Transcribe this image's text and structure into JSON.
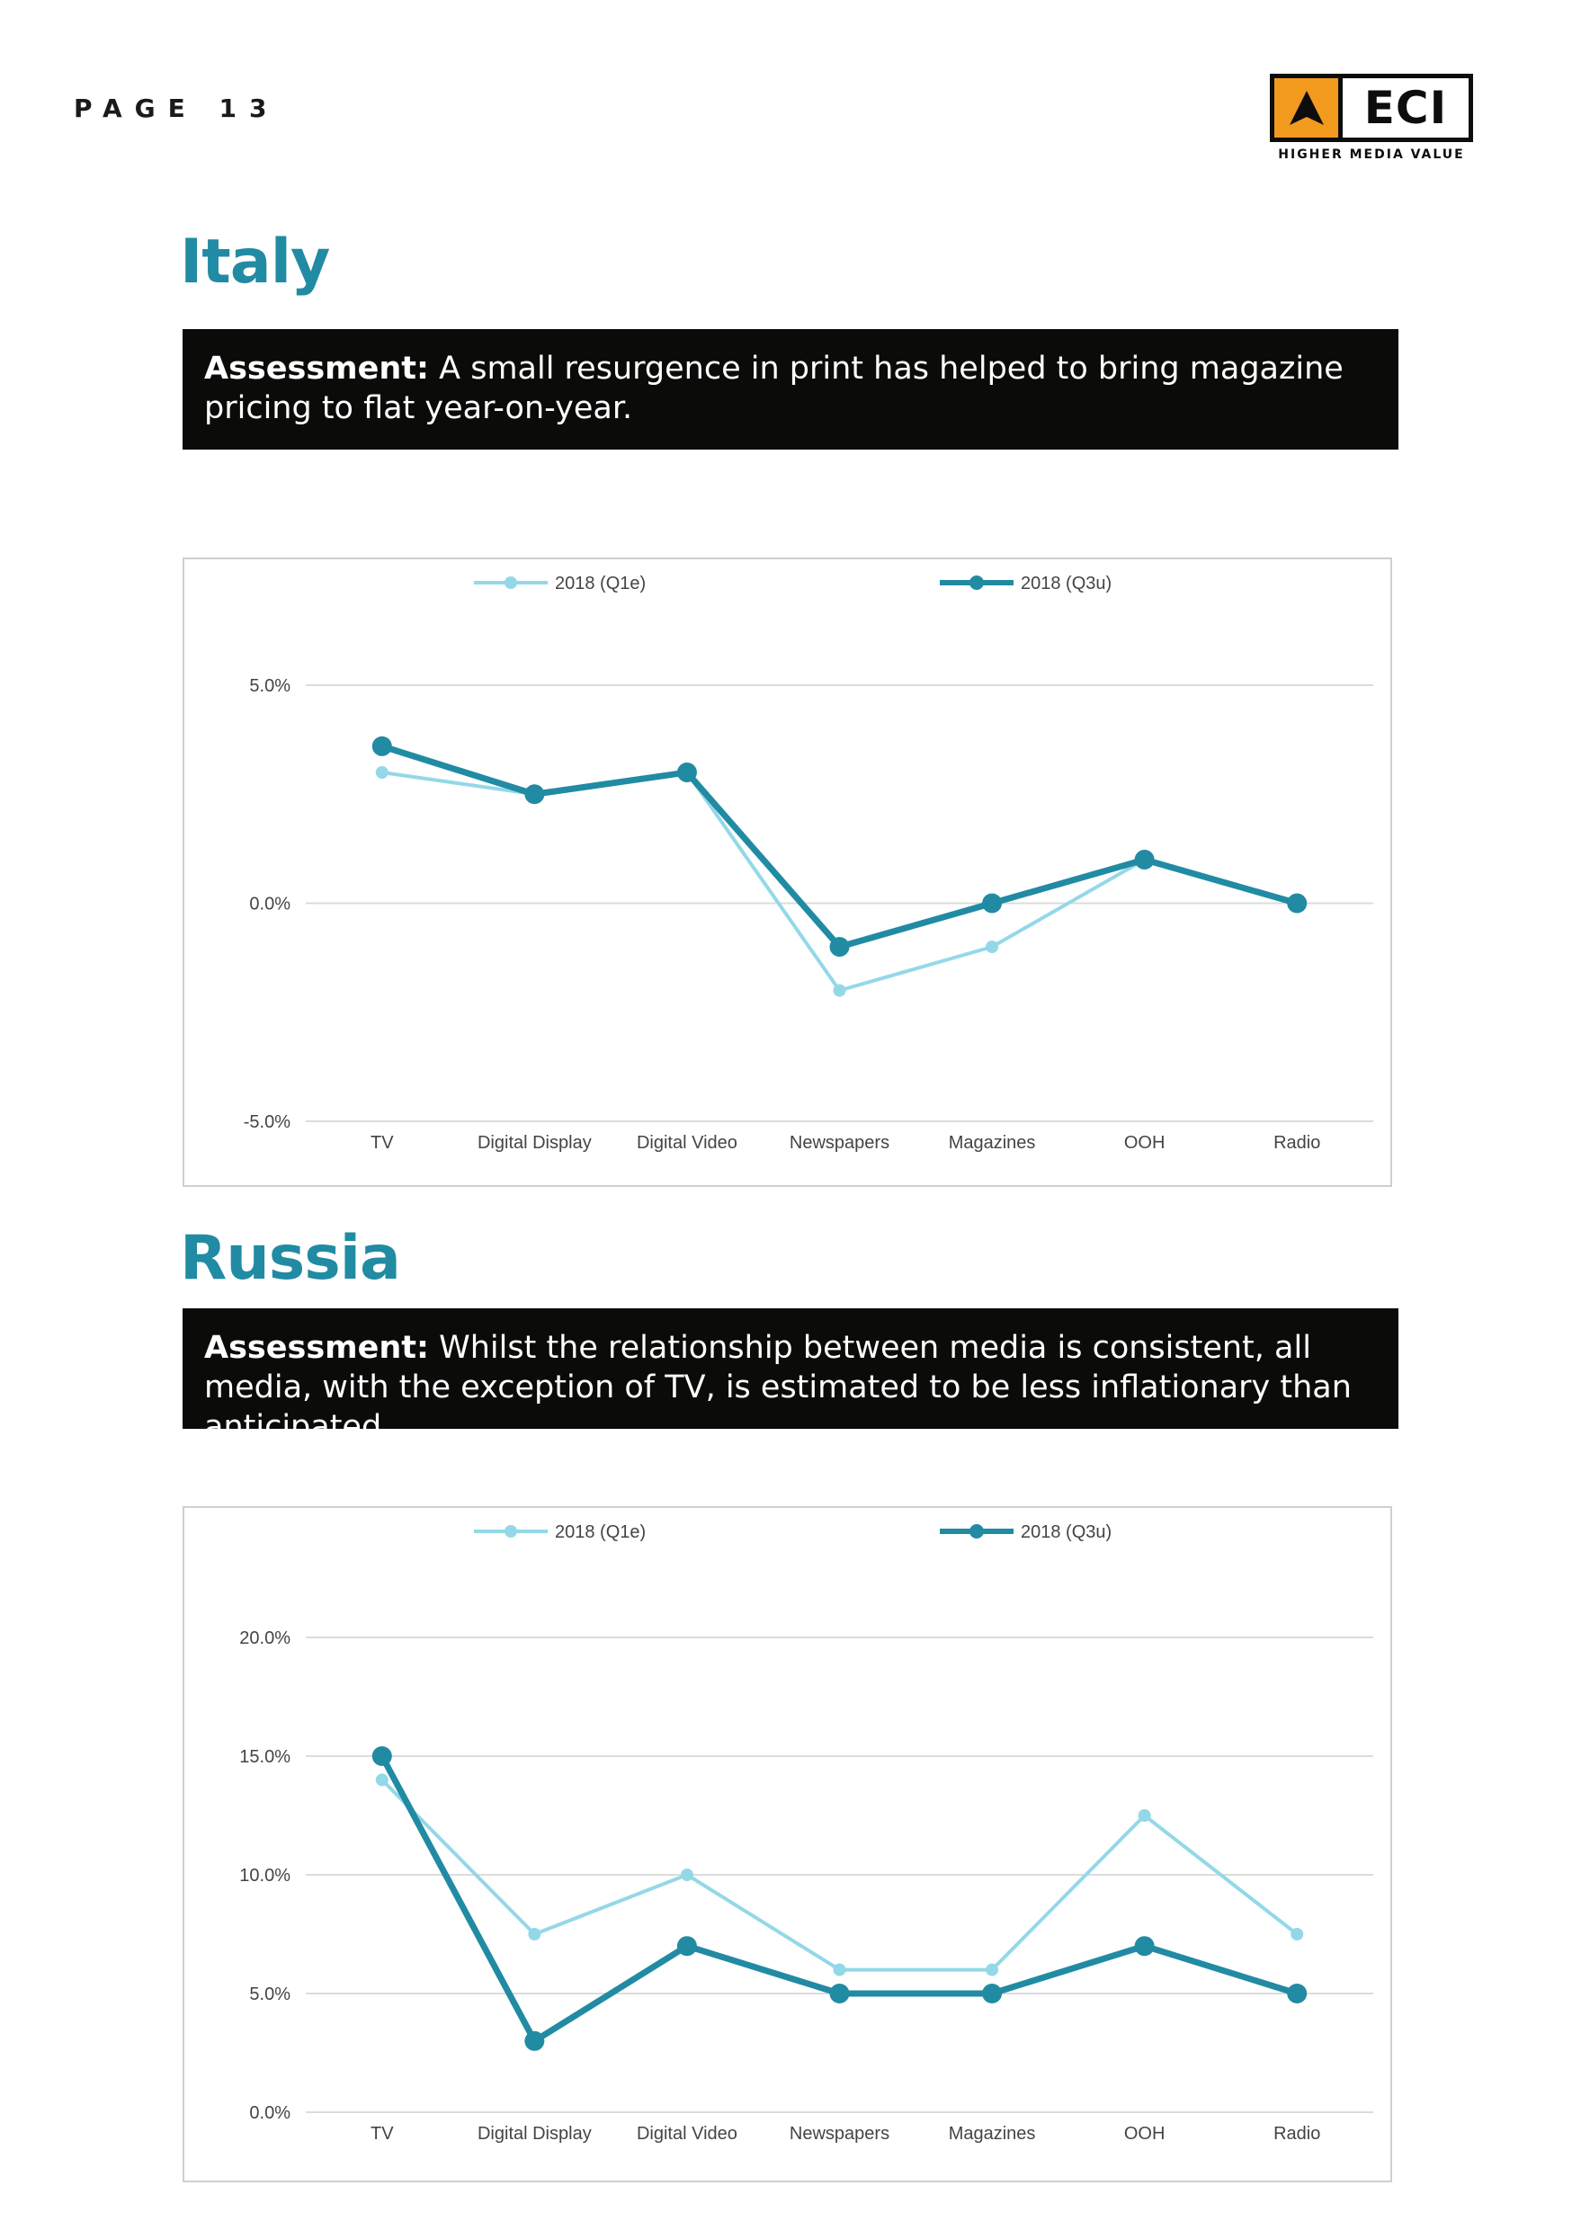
{
  "page": {
    "label": "PAGE 13"
  },
  "logo": {
    "text": "ECI",
    "tagline": "HIGHER MEDIA VALUE"
  },
  "colors": {
    "accent": "#218ba3",
    "series_light": "#94d8e8",
    "series_dark": "#218ba3",
    "logo_orange": "#f29a1e"
  },
  "sections": [
    {
      "title": "Italy",
      "assessment_label": "Assessment:",
      "assessment_text": " A small resurgence in print has helped to bring magazine pricing to flat year-on-year."
    },
    {
      "title": "Russia",
      "assessment_label": "Assessment:",
      "assessment_text": " Whilst the relationship between media is consistent, all media, with the exception of TV, is estimated to be less inflationary than anticipated."
    }
  ],
  "chart_data": [
    {
      "type": "line",
      "categories": [
        "TV",
        "Digital Display",
        "Digital Video",
        "Newspapers",
        "Magazines",
        "OOH",
        "Radio"
      ],
      "ylim": [
        -5,
        5
      ],
      "yticks": [
        -5,
        0,
        5
      ],
      "ytick_labels": [
        "-5.0%",
        "0.0%",
        "5.0%"
      ],
      "grid": true,
      "legend": "top",
      "series": [
        {
          "name": "2018 (Q1e)",
          "color": "#94d8e8",
          "values": [
            3.0,
            2.5,
            3.0,
            -2.0,
            -1.0,
            1.0,
            0.0
          ]
        },
        {
          "name": "2018 (Q3u)",
          "color": "#218ba3",
          "values": [
            3.6,
            2.5,
            3.0,
            -1.0,
            0.0,
            1.0,
            0.0
          ]
        }
      ]
    },
    {
      "type": "line",
      "categories": [
        "TV",
        "Digital Display",
        "Digital Video",
        "Newspapers",
        "Magazines",
        "OOH",
        "Radio"
      ],
      "ylim": [
        0,
        20
      ],
      "yticks": [
        0,
        5,
        10,
        15,
        20
      ],
      "ytick_labels": [
        "0.0%",
        "5.0%",
        "10.0%",
        "15.0%",
        "20.0%"
      ],
      "grid": true,
      "legend": "top",
      "series": [
        {
          "name": "2018 (Q1e)",
          "color": "#94d8e8",
          "values": [
            14.0,
            7.5,
            10.0,
            6.0,
            6.0,
            12.5,
            7.5
          ]
        },
        {
          "name": "2018 (Q3u)",
          "color": "#218ba3",
          "values": [
            15.0,
            3.0,
            7.0,
            5.0,
            5.0,
            7.0,
            5.0
          ]
        }
      ]
    }
  ]
}
